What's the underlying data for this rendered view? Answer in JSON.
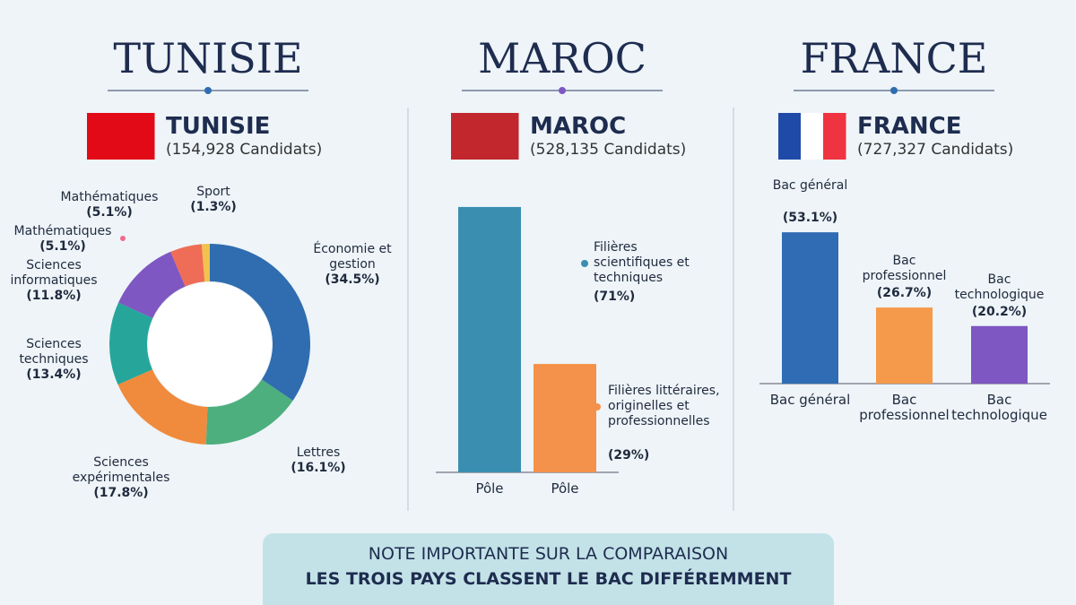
{
  "chart_data": [
    {
      "type": "donut",
      "title": "TUNISIE",
      "subtitle": "(154,928 Candidats)",
      "categories": [
        "Économie et gestion",
        "Lettres",
        "Sciences expérimentales",
        "Sciences techniques",
        "Sciences informatiques",
        "Mathématiques",
        "Sport"
      ],
      "values": [
        34.5,
        16.1,
        17.8,
        13.4,
        11.8,
        5.1,
        1.3
      ],
      "value_labels": [
        "(34.5%)",
        "(16.1%)",
        "(17.8%)",
        "(13.4%)",
        "(11.8%)",
        "(5.1%)",
        "(1.3%)"
      ],
      "colors": [
        "#2f6db0",
        "#4caf7d",
        "#f08a3c",
        "#26a69a",
        "#7e57c2",
        "#ef6c57",
        "#f2c14e"
      ],
      "annotations": [
        {
          "text": "Mathématiques",
          "value": 5.1,
          "value_label": "(5.1%)"
        }
      ]
    },
    {
      "type": "bar",
      "title": "MAROC",
      "subtitle": "(528,135 Candidats)",
      "categories": [
        "Pôle",
        "Pôle"
      ],
      "values": [
        71,
        29
      ],
      "value_labels": [
        "(71%)",
        "(29%)"
      ],
      "bar_labels": [
        "Filières scientifiques et techniques",
        "Filières littéraires, originelles et professionnelles"
      ],
      "colors": [
        "#3a8fb0",
        "#f4914a"
      ]
    },
    {
      "type": "bar",
      "title": "FRANCE",
      "subtitle": "(727,327 Candidats)",
      "categories": [
        "Bac général",
        "Bac professionnel",
        "Bac technologique"
      ],
      "values": [
        53.1,
        26.7,
        20.2
      ],
      "value_labels": [
        "(53.1%)",
        "(26.7%)",
        "(20.2%)"
      ],
      "colors": [
        "#2f6cb3",
        "#f49a4a",
        "#7e57c2"
      ]
    }
  ],
  "note": {
    "line1": "NOTE IMPORTANTE SUR LA COMPARAISON",
    "line2": "LES TROIS PAYS CLASSENT LE BAC DIFFÉREMMENT"
  }
}
